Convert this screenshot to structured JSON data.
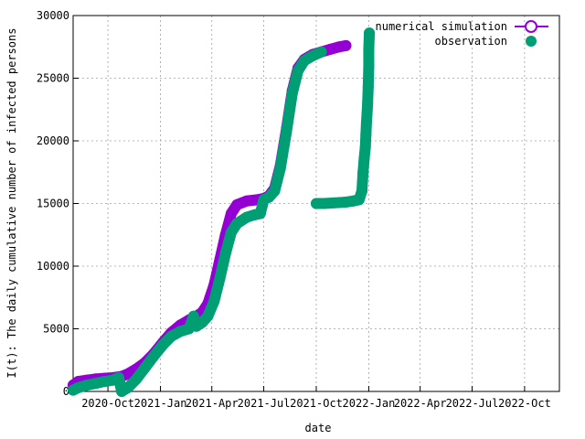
{
  "chart_data": {
    "type": "scatter",
    "title": "",
    "xlabel": "date",
    "ylabel": "I(t): The daily cumulative number of infected persons",
    "grid": true,
    "legend_position": "top-right",
    "xlim": [
      "2020-08-01",
      "2022-12-01"
    ],
    "ylim": [
      0,
      30000
    ],
    "x_ticks": [
      "2020-10-01",
      "2021-01-01",
      "2021-04-01",
      "2021-07-01",
      "2021-10-01",
      "2022-01-01",
      "2022-04-01",
      "2022-07-01",
      "2022-10-01"
    ],
    "x_tick_labels": [
      "2020-Oct",
      "2021-Jan",
      "2021-Apr",
      "2021-Jul",
      "2021-Oct",
      "2022-Jan",
      "2022-Apr",
      "2022-Jul",
      "2022-Oct"
    ],
    "y_ticks": [
      0,
      5000,
      10000,
      15000,
      20000,
      25000,
      30000
    ],
    "series": [
      {
        "name": "numerical simulation",
        "color": "#9400d3",
        "marker": "open-circle-line",
        "points": [
          [
            "2020-08-01",
            500
          ],
          [
            "2020-08-10",
            800
          ],
          [
            "2020-08-25",
            900
          ],
          [
            "2020-09-10",
            1000
          ],
          [
            "2020-09-25",
            1050
          ],
          [
            "2020-10-10",
            1100
          ],
          [
            "2020-10-25",
            1200
          ],
          [
            "2020-11-05",
            1400
          ],
          [
            "2020-11-20",
            1800
          ],
          [
            "2020-12-05",
            2300
          ],
          [
            "2020-12-20",
            3000
          ],
          [
            "2021-01-05",
            3900
          ],
          [
            "2021-01-20",
            4700
          ],
          [
            "2021-02-05",
            5300
          ],
          [
            "2021-02-20",
            5700
          ],
          [
            "2021-03-05",
            6000
          ],
          [
            "2021-03-15",
            6300
          ],
          [
            "2021-03-25",
            7000
          ],
          [
            "2021-04-05",
            8500
          ],
          [
            "2021-04-15",
            10500
          ],
          [
            "2021-04-25",
            12500
          ],
          [
            "2021-05-05",
            14200
          ],
          [
            "2021-05-15",
            14900
          ],
          [
            "2021-06-01",
            15200
          ],
          [
            "2021-06-20",
            15300
          ],
          [
            "2021-07-01",
            15400
          ],
          [
            "2021-07-10",
            15600
          ],
          [
            "2021-07-20",
            16200
          ],
          [
            "2021-07-30",
            18000
          ],
          [
            "2021-08-10",
            21000
          ],
          [
            "2021-08-20",
            24000
          ],
          [
            "2021-08-30",
            25800
          ],
          [
            "2021-09-10",
            26500
          ],
          [
            "2021-09-25",
            26900
          ],
          [
            "2021-10-10",
            27100
          ],
          [
            "2021-10-25",
            27300
          ],
          [
            "2021-11-10",
            27500
          ],
          [
            "2021-11-22",
            27600
          ]
        ]
      },
      {
        "name": "observation",
        "color": "#009e73",
        "marker": "filled-circle",
        "points": [
          [
            "2020-08-01",
            100
          ],
          [
            "2020-08-10",
            300
          ],
          [
            "2020-08-25",
            500
          ],
          [
            "2020-09-10",
            650
          ],
          [
            "2020-09-25",
            800
          ],
          [
            "2020-10-10",
            900
          ],
          [
            "2020-10-20",
            1100
          ],
          [
            "2020-10-25",
            0
          ],
          [
            "2020-11-05",
            300
          ],
          [
            "2020-11-20",
            1000
          ],
          [
            "2020-12-05",
            1900
          ],
          [
            "2020-12-20",
            2800
          ],
          [
            "2021-01-05",
            3700
          ],
          [
            "2021-01-20",
            4400
          ],
          [
            "2021-02-05",
            4800
          ],
          [
            "2021-02-20",
            5000
          ],
          [
            "2021-02-28",
            6000
          ],
          [
            "2021-03-05",
            5200
          ],
          [
            "2021-03-15",
            5500
          ],
          [
            "2021-03-25",
            6000
          ],
          [
            "2021-04-05",
            7200
          ],
          [
            "2021-04-15",
            9000
          ],
          [
            "2021-04-25",
            11000
          ],
          [
            "2021-05-05",
            12700
          ],
          [
            "2021-05-15",
            13400
          ],
          [
            "2021-06-01",
            13900
          ],
          [
            "2021-06-15",
            14100
          ],
          [
            "2021-06-25",
            14200
          ],
          [
            "2021-07-01",
            15300
          ],
          [
            "2021-07-10",
            15500
          ],
          [
            "2021-07-20",
            16000
          ],
          [
            "2021-07-30",
            17800
          ],
          [
            "2021-08-10",
            20800
          ],
          [
            "2021-08-20",
            23800
          ],
          [
            "2021-08-30",
            25600
          ],
          [
            "2021-09-10",
            26400
          ],
          [
            "2021-09-25",
            26800
          ],
          [
            "2021-10-10",
            27100
          ],
          [
            "2021-10-01",
            15000
          ],
          [
            "2021-10-15",
            15000
          ],
          [
            "2021-11-01",
            15050
          ],
          [
            "2021-11-20",
            15100
          ],
          [
            "2021-12-05",
            15200
          ],
          [
            "2021-12-15",
            15300
          ],
          [
            "2021-12-20",
            16000
          ],
          [
            "2021-12-22",
            17500
          ],
          [
            "2021-12-24",
            18600
          ],
          [
            "2021-12-26",
            19500
          ],
          [
            "2021-12-27",
            20500
          ],
          [
            "2021-12-28",
            21500
          ],
          [
            "2021-12-29",
            22200
          ],
          [
            "2021-12-30",
            23000
          ],
          [
            "2021-12-31",
            24300
          ],
          [
            "2022-01-01",
            25900
          ],
          [
            "2022-01-01",
            27300
          ],
          [
            "2022-01-02",
            28600
          ]
        ]
      }
    ]
  }
}
